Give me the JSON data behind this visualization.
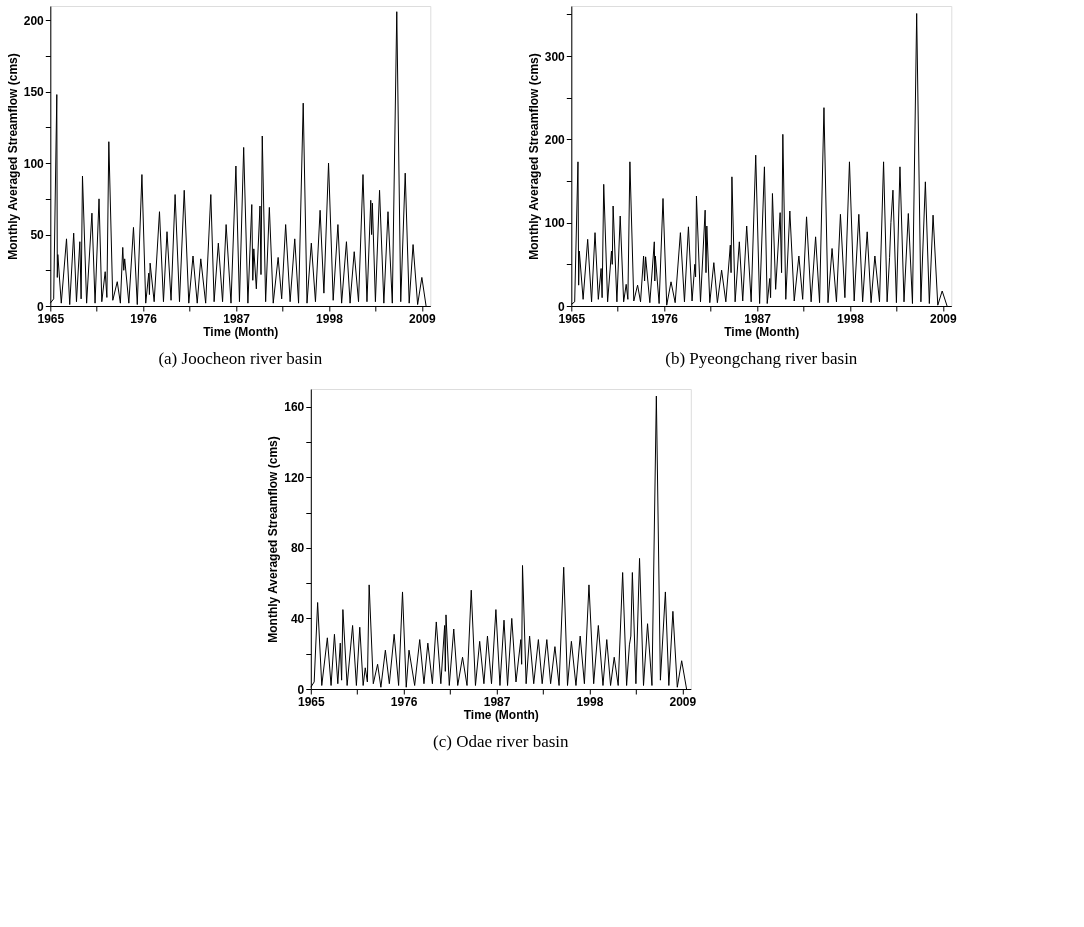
{
  "chart_data": [
    {
      "type": "line",
      "title": "(a) Joocheon river basin",
      "xlabel": "Time (Month)",
      "ylabel": "Monthly Averaged Streamflow (cms)",
      "grid": false,
      "line_style": "solid",
      "marker": "none",
      "xlim": [
        1965,
        2010
      ],
      "xticks": [
        1965,
        {
          "value": 1970.5,
          "label": null
        },
        1976,
        {
          "value": 1981.5,
          "label": null
        },
        1987,
        {
          "value": 1992.5,
          "label": null
        },
        1998,
        {
          "value": 2003.5,
          "label": null
        },
        2009
      ],
      "ylim": [
        0,
        210
      ],
      "yticks": [
        0,
        {
          "value": 25,
          "label": null
        },
        50,
        {
          "value": 75,
          "label": null
        },
        100,
        {
          "value": 125,
          "label": null
        },
        150,
        {
          "value": 175,
          "label": null
        },
        200
      ],
      "x": [
        1965.0,
        1965.4,
        1965.77,
        1965.83,
        1965.89,
        1966.3,
        1966.92,
        1967.3,
        1967.77,
        1968.1,
        1968.5,
        1968.65,
        1968.81,
        1969.3,
        1969.93,
        1970.3,
        1970.77,
        1971.1,
        1971.5,
        1971.7,
        1971.93,
        1972.4,
        1972.93,
        1973.3,
        1973.58,
        1973.7,
        1973.81,
        1974.3,
        1974.85,
        1975.3,
        1975.85,
        1976.3,
        1976.66,
        1976.74,
        1976.82,
        1977.3,
        1977.93,
        1978.4,
        1978.82,
        1979.3,
        1979.78,
        1980.3,
        1980.86,
        1981.4,
        1981.9,
        1982.4,
        1982.82,
        1983.4,
        1984.01,
        1984.4,
        1984.9,
        1985.4,
        1985.82,
        1986.4,
        1986.98,
        1987.4,
        1987.9,
        1988.4,
        1988.86,
        1988.98,
        1989.1,
        1989.4,
        1989.83,
        1989.95,
        1990.1,
        1990.5,
        1990.94,
        1991.4,
        1991.98,
        1992.4,
        1992.87,
        1993.4,
        1993.95,
        1994.4,
        1994.95,
        1995.4,
        1995.91,
        1996.4,
        1996.95,
        1997.4,
        1997.95,
        1998.5,
        1999.06,
        1999.5,
        2000.07,
        2000.5,
        2000.99,
        2001.5,
        2002.03,
        2002.5,
        2002.95,
        2003.05,
        2003.14,
        2003.5,
        2003.99,
        2004.5,
        2004.99,
        2005.5,
        2006.03,
        2006.5,
        2007.03,
        2007.5,
        2007.96,
        2008.5,
        2009.0,
        2009.5
      ],
      "series": [
        {
          "color": "#000000",
          "values": [
            2,
            5,
            148,
            20,
            36,
            2,
            47,
            1,
            51,
            3,
            45,
            5,
            91,
            2,
            65,
            2,
            75,
            3,
            24,
            6,
            115,
            4,
            17,
            2,
            41,
            25,
            33,
            2,
            55,
            1,
            92,
            2,
            23,
            8,
            30,
            3,
            66,
            3,
            52,
            4,
            78,
            3,
            81,
            2,
            35,
            2,
            33,
            2,
            78,
            3,
            44,
            3,
            57,
            2,
            98,
            3,
            111,
            2,
            71,
            18,
            40,
            12,
            70,
            22,
            119,
            3,
            69,
            2,
            34,
            5,
            57,
            3,
            47,
            2,
            142,
            2,
            44,
            3,
            67,
            9,
            100,
            4,
            57,
            2,
            45,
            2,
            38,
            3,
            92,
            3,
            74,
            50,
            72,
            3,
            81,
            2,
            66,
            2,
            206,
            3,
            93,
            2,
            43,
            1,
            20,
            0
          ]
        }
      ]
    },
    {
      "type": "line",
      "title": "(b) Pyeongchang river basin",
      "xlabel": "Time (Month)",
      "ylabel": "Monthly Averaged Streamflow (cms)",
      "grid": false,
      "line_style": "solid",
      "marker": "none",
      "xlim": [
        1965,
        2010
      ],
      "xticks": [
        1965,
        {
          "value": 1970.5,
          "label": null
        },
        1976,
        {
          "value": 1981.5,
          "label": null
        },
        1987,
        {
          "value": 1992.5,
          "label": null
        },
        1998,
        {
          "value": 2003.5,
          "label": null
        },
        2009
      ],
      "ylim": [
        0,
        360
      ],
      "yticks": [
        0,
        {
          "value": 50,
          "label": null
        },
        100,
        {
          "value": 150,
          "label": null
        },
        200,
        {
          "value": 250,
          "label": null
        },
        300,
        {
          "value": 350,
          "label": null
        }
      ],
      "x": [
        1965.0,
        1965.4,
        1965.79,
        1965.87,
        1965.95,
        1966.4,
        1966.94,
        1967.4,
        1967.81,
        1968.2,
        1968.53,
        1968.65,
        1968.84,
        1969.3,
        1969.76,
        1969.85,
        1969.95,
        1970.4,
        1970.79,
        1971.2,
        1971.5,
        1971.7,
        1971.94,
        1972.4,
        1972.85,
        1973.2,
        1973.56,
        1973.68,
        1973.8,
        1974.3,
        1974.83,
        1974.89,
        1974.95,
        1975.4,
        1975.86,
        1976.3,
        1976.81,
        1977.3,
        1977.92,
        1978.4,
        1978.87,
        1979.3,
        1979.63,
        1979.72,
        1979.82,
        1980.3,
        1980.85,
        1980.95,
        1981.05,
        1981.4,
        1981.88,
        1982.3,
        1982.8,
        1983.3,
        1983.83,
        1983.92,
        1984.02,
        1984.4,
        1984.9,
        1985.3,
        1985.77,
        1986.3,
        1986.84,
        1987.3,
        1987.87,
        1988.2,
        1988.5,
        1988.6,
        1988.82,
        1989.2,
        1989.73,
        1989.9,
        1990.05,
        1990.4,
        1990.88,
        1991.4,
        1991.95,
        1992.4,
        1992.86,
        1993.4,
        1993.93,
        1994.4,
        1994.92,
        1995.4,
        1995.88,
        1996.4,
        1996.87,
        1997.4,
        1997.94,
        1998.5,
        1999.05,
        1999.5,
        2000.04,
        2000.5,
        2000.95,
        2001.5,
        2001.98,
        2002.4,
        2002.69,
        2002.85,
        2003.09,
        2003.5,
        2003.92,
        2004.4,
        2004.91,
        2005.4,
        2005.9,
        2006.4,
        2006.93,
        2007.4,
        2007.84,
        2008.4,
        2008.92,
        2009.5
      ],
      "series": [
        {
          "color": "#000000",
          "values": [
            2,
            5,
            173,
            25,
            66,
            8,
            80,
            5,
            88,
            8,
            45,
            10,
            146,
            5,
            66,
            50,
            120,
            5,
            108,
            5,
            26,
            8,
            173,
            6,
            25,
            5,
            60,
            30,
            59,
            4,
            77,
            30,
            60,
            3,
            129,
            1,
            29,
            4,
            88,
            5,
            95,
            6,
            50,
            35,
            132,
            5,
            115,
            40,
            96,
            4,
            52,
            4,
            43,
            5,
            73,
            40,
            155,
            5,
            77,
            6,
            96,
            5,
            181,
            3,
            167,
            3,
            33,
            10,
            135,
            20,
            112,
            40,
            206,
            8,
            114,
            6,
            60,
            8,
            107,
            5,
            83,
            4,
            238,
            4,
            69,
            5,
            110,
            10,
            173,
            6,
            110,
            5,
            89,
            4,
            60,
            5,
            173,
            5,
            58,
            100,
            139,
            4,
            167,
            5,
            111,
            3,
            351,
            5,
            149,
            3,
            109,
            1,
            18,
            0
          ]
        }
      ]
    },
    {
      "type": "line",
      "title": "(c) Odae river basin",
      "xlabel": "Time (Month)",
      "ylabel": "Monthly Averaged Streamflow (cms)",
      "grid": false,
      "line_style": "solid",
      "marker": "none",
      "xlim": [
        1965,
        2010
      ],
      "xticks": [
        1965,
        {
          "value": 1970.5,
          "label": null
        },
        1976,
        {
          "value": 1981.5,
          "label": null
        },
        1987,
        {
          "value": 1992.5,
          "label": null
        },
        1998,
        {
          "value": 2003.5,
          "label": null
        },
        2009
      ],
      "ylim": [
        0,
        170
      ],
      "yticks": [
        0,
        {
          "value": 20,
          "label": null
        },
        40,
        {
          "value": 60,
          "label": null
        },
        80,
        {
          "value": 100,
          "label": null
        },
        120,
        {
          "value": 140,
          "label": null
        },
        160
      ],
      "x": [
        1965.0,
        1965.4,
        1965.81,
        1966.3,
        1966.96,
        1967.4,
        1967.8,
        1968.2,
        1968.49,
        1968.65,
        1968.8,
        1969.3,
        1969.95,
        1970.4,
        1970.8,
        1971.2,
        1971.45,
        1971.7,
        1971.91,
        1972.4,
        1972.91,
        1973.3,
        1973.83,
        1974.3,
        1974.87,
        1975.4,
        1975.86,
        1976.3,
        1976.63,
        1977.3,
        1977.9,
        1978.4,
        1978.86,
        1979.4,
        1979.86,
        1980.4,
        1980.85,
        1980.93,
        1981.01,
        1981.4,
        1981.93,
        1982.4,
        1982.97,
        1983.5,
        1984.0,
        1984.5,
        1985.0,
        1985.5,
        1985.92,
        1986.4,
        1986.92,
        1987.4,
        1987.88,
        1988.3,
        1988.8,
        1989.3,
        1989.87,
        1989.97,
        1990.07,
        1990.5,
        1990.91,
        1991.4,
        1991.95,
        1992.4,
        1992.95,
        1993.4,
        1993.91,
        1994.4,
        1994.95,
        1995.4,
        1995.86,
        1996.4,
        1996.9,
        1997.4,
        1997.94,
        1998.5,
        1999.05,
        1999.6,
        2000.05,
        2000.5,
        2000.93,
        2001.4,
        2001.93,
        2002.4,
        2002.73,
        2002.9,
        2003.08,
        2003.5,
        2003.93,
        2004.4,
        2004.88,
        2005.4,
        2005.92,
        2006.4,
        2006.99,
        2007.4,
        2007.88,
        2008.4,
        2008.92,
        2009.5
      ],
      "series": [
        {
          "color": "#000000",
          "values": [
            1,
            4,
            49,
            2,
            29,
            2,
            31,
            3,
            26,
            5,
            45,
            2,
            36,
            2,
            35,
            2,
            12,
            4,
            59,
            3,
            14,
            1,
            22,
            3,
            31,
            2,
            55,
            1,
            22,
            2,
            28,
            3,
            26,
            3,
            38,
            3,
            36,
            10,
            42,
            2,
            34,
            2,
            18,
            2,
            56,
            2,
            27,
            3,
            30,
            3,
            45,
            2,
            39,
            2,
            40,
            4,
            28,
            14,
            70,
            3,
            30,
            3,
            28,
            3,
            28,
            3,
            24,
            2,
            69,
            2,
            27,
            2,
            30,
            3,
            59,
            3,
            36,
            2,
            28,
            2,
            18,
            2,
            66,
            2,
            25,
            30,
            66,
            3,
            74,
            2,
            37,
            2,
            166,
            5,
            55,
            2,
            44,
            1,
            16,
            0
          ]
        }
      ]
    }
  ]
}
